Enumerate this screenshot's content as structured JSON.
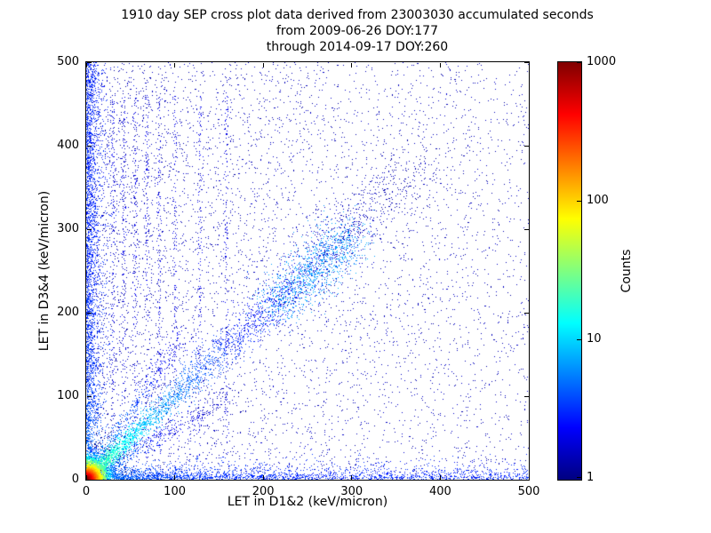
{
  "figure": {
    "title_lines": [
      "1910 day SEP cross plot data derived from 23003030 accumulated seconds",
      "from 2009-06-26 DOY:177",
      "through 2014-09-17 DOY:260"
    ]
  },
  "chart_data": {
    "type": "heatmap",
    "title": "1910 day SEP cross plot data derived from 23003030 accumulated seconds from 2009-06-26 DOY:177 through 2014-09-17 DOY:260",
    "xlabel": "LET in D1&2 (keV/micron)",
    "ylabel": "LET in D3&4 (keV/micron)",
    "xlim": [
      0,
      500
    ],
    "ylim": [
      0,
      500
    ],
    "xticks": [
      0,
      100,
      200,
      300,
      400,
      500
    ],
    "yticks": [
      0,
      100,
      200,
      300,
      400,
      500
    ],
    "grid": false,
    "colorbar": {
      "label": "Counts",
      "scale": "log",
      "range": [
        1,
        1000
      ],
      "ticks": [
        1,
        10,
        100,
        1000
      ],
      "colormap": "jet",
      "stops": [
        {
          "pos": 0,
          "color": "#000080"
        },
        {
          "pos": 12.5,
          "color": "#0000ff"
        },
        {
          "pos": 37.5,
          "color": "#00ffff"
        },
        {
          "pos": 62.5,
          "color": "#ffff00"
        },
        {
          "pos": 87.5,
          "color": "#ff0000"
        },
        {
          "pos": 100,
          "color": "#800000"
        }
      ]
    },
    "features": [
      {
        "name": "hot-core-origin",
        "kind": "core",
        "n": 5200,
        "scale": 9,
        "level_falloff": 42
      },
      {
        "name": "main-diagonal-band",
        "kind": "diagonal",
        "n": 3200,
        "slope": 1.0,
        "extent": 380,
        "power": 2.0,
        "sigma0": 3,
        "sigma_slope": 0.045,
        "level0": 0.5,
        "level_decay": 150
      },
      {
        "name": "diagonal-cluster",
        "kind": "blob",
        "n": 1000,
        "center_x": 255,
        "center_y": 250,
        "spread_along": 45,
        "sigma": 15,
        "level": 0.27
      },
      {
        "name": "lower-ray",
        "kind": "diagonal",
        "n": 500,
        "slope": 0.62,
        "extent": 160,
        "power": 1.6,
        "sigma0": 2,
        "sigma_slope": 0.05,
        "level0": 0.35,
        "level_decay": 90
      },
      {
        "name": "upper-ray",
        "kind": "diagonal",
        "n": 500,
        "slope": 1.6,
        "extent": 110,
        "power": 1.6,
        "sigma0": 2,
        "sigma_slope": 0.05,
        "level0": 0.35,
        "level_decay": 90
      },
      {
        "name": "left-column",
        "kind": "column",
        "n": 2800,
        "x_scale": 7,
        "base_level": 0.16
      },
      {
        "name": "bottom-band",
        "kind": "band",
        "n": 2800,
        "y_scale": 6,
        "x_power": 2.0,
        "base_level": 0.16
      },
      {
        "name": "background-uniform",
        "kind": "uniform",
        "n": 3600,
        "level": 0.03
      },
      {
        "name": "background-left",
        "kind": "uniform_left",
        "n": 2400,
        "x_scale": 150,
        "level": 0.03
      },
      {
        "name": "vertical-striations",
        "kind": "striations",
        "xs": [
          30,
          42,
          55,
          68,
          82,
          100,
          128,
          158
        ],
        "n_each": 140,
        "ymax": 460,
        "level": 0.07
      }
    ]
  }
}
